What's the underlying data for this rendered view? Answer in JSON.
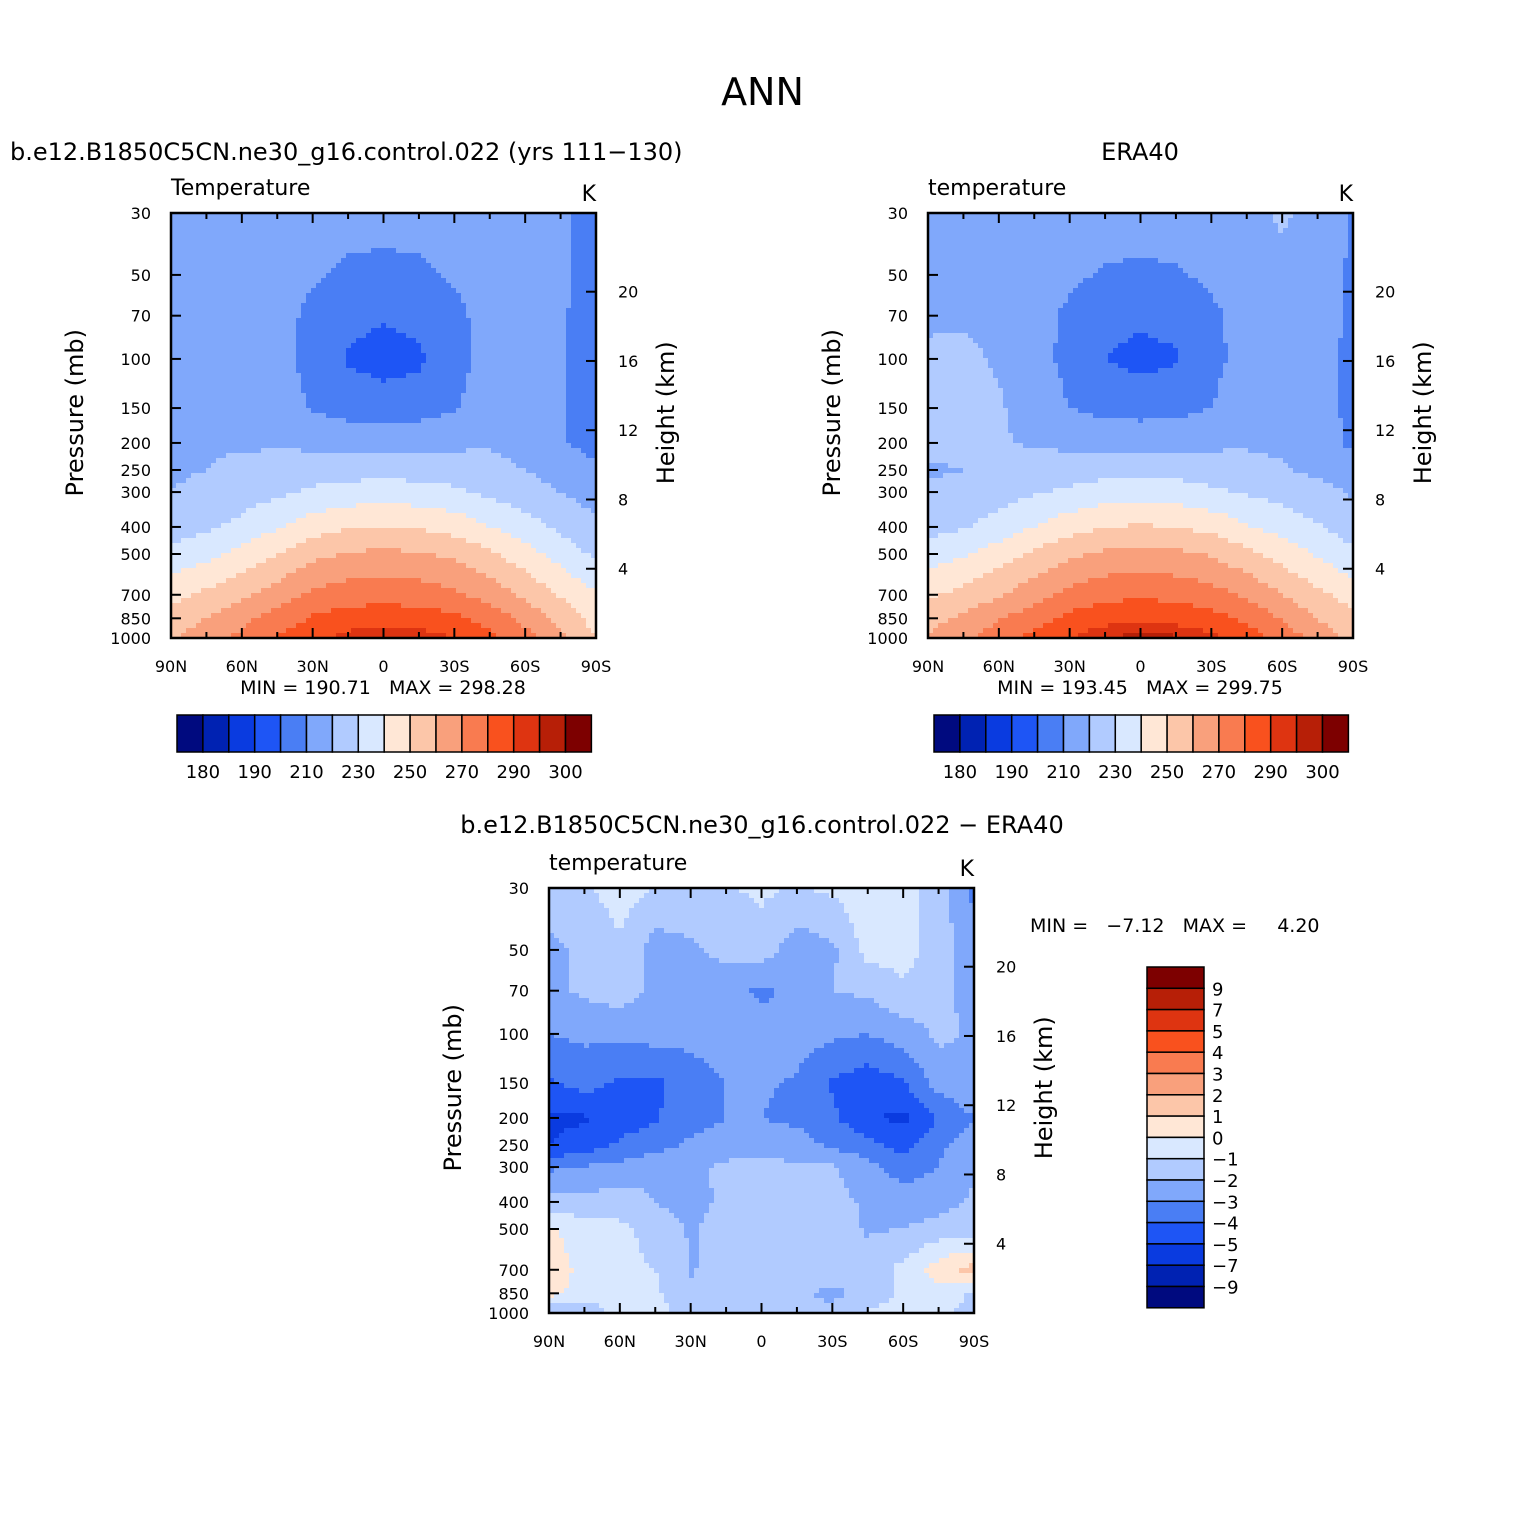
{
  "suptitle": "ANN",
  "panels": [
    {
      "id": "model",
      "title": "b.e12.B1850C5CN.ne30_g16.control.022 (yrs 111-130)",
      "left_label": "Temperature",
      "units": "K",
      "min_max": "MIN = 190.71   MAX = 298.28",
      "stats": {
        "min": 190.71,
        "max": 298.28
      }
    },
    {
      "id": "obs",
      "title": "ERA40",
      "left_label": "temperature",
      "units": "K",
      "min_max": "MIN = 193.45   MAX = 299.75",
      "stats": {
        "min": 193.45,
        "max": 299.75
      }
    },
    {
      "id": "diff",
      "title": "b.e12.B1850C5CN.ne30_g16.control.022 - ERA40",
      "left_label": "temperature",
      "units": "K",
      "min_max": "MIN =   -7.12   MAX =     4.20",
      "stats": {
        "min": -7.12,
        "max": 4.2
      }
    }
  ],
  "chart_data": [
    {
      "type": "heatmap",
      "panel": "model",
      "title": "b.e12.B1850C5CN.ne30_g16.control.022 (yrs 111-130)",
      "left_label": "Temperature",
      "units": "K",
      "xlabel": "",
      "ylabel": "Pressure (mb)",
      "ylabel_right": "Height (km)",
      "x_ticks": [
        "90N",
        "60N",
        "30N",
        "0",
        "30S",
        "60S",
        "90S"
      ],
      "y_ticks": [
        30,
        50,
        70,
        100,
        150,
        200,
        250,
        300,
        400,
        500,
        700,
        850,
        1000
      ],
      "y_right_ticks": [
        4,
        8,
        12,
        16,
        20
      ],
      "ylim": [
        1000,
        30
      ],
      "y_scale": "log",
      "colorbar_levels": [
        180,
        185,
        190,
        200,
        210,
        220,
        230,
        240,
        250,
        260,
        270,
        280,
        290,
        295,
        300
      ],
      "colorbar_labels": [
        "180",
        "190",
        "210",
        "230",
        "250",
        "270",
        "290",
        "300"
      ],
      "colors": [
        "#000a7f",
        "#0022b2",
        "#0a3be0",
        "#1e55f5",
        "#4a7ef4",
        "#80a8fb",
        "#b1cbff",
        "#d9e8ff",
        "#ffe7d6",
        "#fcc6a9",
        "#f9a07c",
        "#f97b50",
        "#f9511e",
        "#de3411",
        "#b71f07",
        "#7d0000"
      ],
      "latitudes": [
        90,
        75,
        60,
        45,
        30,
        15,
        0,
        -15,
        -30,
        -45,
        -60,
        -75,
        -90
      ],
      "pressure_levels": [
        30,
        50,
        70,
        100,
        150,
        200,
        250,
        300,
        400,
        500,
        700,
        850,
        1000
      ],
      "values": [
        [
          219,
          218,
          217,
          216,
          215,
          214,
          214,
          214,
          215,
          215,
          215,
          212,
          206
        ],
        [
          219,
          218,
          216,
          214,
          211,
          208,
          207,
          208,
          211,
          214,
          214,
          212,
          206
        ],
        [
          219,
          218,
          216,
          213,
          208,
          203,
          201,
          203,
          208,
          213,
          214,
          211,
          206
        ],
        [
          219,
          218,
          216,
          213,
          207,
          199,
          196,
          198,
          207,
          213,
          214,
          211,
          205
        ],
        [
          219,
          218,
          217,
          215,
          209,
          206,
          205,
          206,
          209,
          215,
          214,
          211,
          205
        ],
        [
          219,
          219,
          219,
          219,
          218,
          217,
          217,
          217,
          218,
          219,
          216,
          211,
          206
        ],
        [
          219,
          220,
          222,
          223,
          225,
          226,
          226,
          226,
          225,
          223,
          220,
          216,
          212
        ],
        [
          220,
          222,
          225,
          228,
          232,
          234,
          235,
          234,
          232,
          228,
          224,
          220,
          216
        ],
        [
          225,
          228,
          233,
          239,
          245,
          249,
          250,
          249,
          246,
          240,
          234,
          228,
          222
        ],
        [
          233,
          237,
          243,
          250,
          257,
          261,
          262,
          261,
          258,
          252,
          244,
          236,
          228
        ],
        [
          247,
          252,
          258,
          265,
          272,
          275,
          276,
          275,
          272,
          266,
          258,
          249,
          241
        ],
        [
          254,
          260,
          267,
          274,
          281,
          285,
          286,
          285,
          282,
          276,
          267,
          256,
          246
        ],
        [
          259,
          265,
          273,
          281,
          288,
          293,
          295,
          294,
          290,
          283,
          274,
          262,
          250
        ]
      ]
    },
    {
      "type": "heatmap",
      "panel": "obs",
      "title": "ERA40",
      "left_label": "temperature",
      "units": "K",
      "xlabel": "",
      "ylabel": "Pressure (mb)",
      "ylabel_right": "Height (km)",
      "x_ticks": [
        "90N",
        "60N",
        "30N",
        "0",
        "30S",
        "60S",
        "90S"
      ],
      "y_ticks": [
        30,
        50,
        70,
        100,
        150,
        200,
        250,
        300,
        400,
        500,
        700,
        850,
        1000
      ],
      "y_right_ticks": [
        4,
        8,
        12,
        16,
        20
      ],
      "ylim": [
        1000,
        30
      ],
      "y_scale": "log",
      "colorbar_levels": [
        180,
        185,
        190,
        200,
        210,
        220,
        230,
        240,
        250,
        260,
        270,
        280,
        290,
        295,
        300
      ],
      "colorbar_labels": [
        "180",
        "190",
        "210",
        "230",
        "250",
        "270",
        "290",
        "300"
      ],
      "colors": [
        "#000a7f",
        "#0022b2",
        "#0a3be0",
        "#1e55f5",
        "#4a7ef4",
        "#80a8fb",
        "#b1cbff",
        "#d9e8ff",
        "#ffe7d6",
        "#fcc6a9",
        "#f9a07c",
        "#f97b50",
        "#f9511e",
        "#de3411",
        "#b71f07",
        "#7d0000"
      ],
      "latitudes": [
        90,
        75,
        60,
        45,
        30,
        15,
        0,
        -15,
        -30,
        -45,
        -60,
        -75,
        -90
      ],
      "pressure_levels": [
        30,
        50,
        70,
        100,
        150,
        200,
        250,
        300,
        400,
        500,
        700,
        850,
        1000
      ],
      "values": [
        [
          219,
          219,
          218,
          217,
          216,
          215,
          215,
          215,
          216,
          218,
          221,
          218,
          209
        ],
        [
          219,
          219,
          218,
          216,
          212,
          209,
          208,
          209,
          212,
          216,
          218,
          216,
          208
        ],
        [
          219,
          219,
          218,
          214,
          208,
          203,
          202,
          203,
          208,
          214,
          218,
          216,
          207
        ],
        [
          221,
          222,
          219,
          214,
          207,
          200,
          197,
          199,
          207,
          214,
          218,
          215,
          207
        ],
        [
          223,
          224,
          221,
          216,
          210,
          207,
          206,
          207,
          210,
          216,
          218,
          215,
          207
        ],
        [
          222,
          223,
          221,
          219,
          218,
          217,
          217,
          217,
          218,
          219,
          218,
          215,
          208
        ],
        [
          219,
          220,
          222,
          223,
          225,
          226,
          226,
          226,
          225,
          223,
          221,
          218,
          214
        ],
        [
          221,
          223,
          226,
          229,
          232,
          235,
          236,
          235,
          232,
          229,
          226,
          223,
          219
        ],
        [
          226,
          229,
          234,
          240,
          246,
          250,
          251,
          250,
          247,
          241,
          236,
          231,
          225
        ],
        [
          235,
          239,
          245,
          252,
          258,
          262,
          263,
          262,
          259,
          253,
          246,
          239,
          232
        ],
        [
          248,
          253,
          259,
          266,
          273,
          277,
          278,
          277,
          274,
          268,
          260,
          252,
          246
        ],
        [
          256,
          262,
          269,
          276,
          283,
          287,
          288,
          287,
          284,
          278,
          269,
          260,
          252
        ],
        [
          261,
          268,
          276,
          283,
          290,
          295,
          297,
          296,
          292,
          285,
          276,
          266,
          256
        ]
      ]
    },
    {
      "type": "heatmap",
      "panel": "diff",
      "title": "b.e12.B1850C5CN.ne30_g16.control.022 - ERA40",
      "left_label": "temperature",
      "units": "K",
      "xlabel": "",
      "ylabel": "Pressure (mb)",
      "ylabel_right": "Height (km)",
      "x_ticks": [
        "90N",
        "60N",
        "30N",
        "0",
        "30S",
        "60S",
        "90S"
      ],
      "y_ticks": [
        30,
        50,
        70,
        100,
        150,
        200,
        250,
        300,
        400,
        500,
        700,
        850,
        1000
      ],
      "y_right_ticks": [
        4,
        8,
        12,
        16,
        20
      ],
      "ylim": [
        1000,
        30
      ],
      "y_scale": "log",
      "colorbar_levels": [
        -9,
        -7,
        -5,
        -4,
        -3,
        -2,
        -1,
        0,
        1,
        2,
        3,
        4,
        5,
        7,
        9
      ],
      "colorbar_labels": [
        "9",
        "7",
        "5",
        "4",
        "3",
        "2",
        "1",
        "0",
        "-1",
        "-2",
        "-3",
        "-4",
        "-5",
        "-7",
        "-9"
      ],
      "colors": [
        "#000a7f",
        "#0022b2",
        "#0a3be0",
        "#1e55f5",
        "#4a7ef4",
        "#80a8fb",
        "#b1cbff",
        "#d9e8ff",
        "#ffe7d6",
        "#fcc6a9",
        "#f9a07c",
        "#f97b50",
        "#f9511e",
        "#de3411",
        "#b71f07",
        "#7d0000"
      ],
      "latitudes": [
        90,
        75,
        60,
        45,
        30,
        15,
        0,
        -15,
        -30,
        -45,
        -60,
        -75,
        -90
      ],
      "pressure_levels": [
        30,
        50,
        70,
        100,
        150,
        200,
        250,
        300,
        400,
        500,
        700,
        850,
        1000
      ],
      "values": [
        [
          -1.5,
          -1.2,
          -0.5,
          -1.0,
          -1.2,
          -1.1,
          -0.8,
          -1.1,
          -0.8,
          -0.4,
          -0.6,
          -1.5,
          -3.2
        ],
        [
          -2.2,
          -1.8,
          -1.2,
          -2.5,
          -2.2,
          -1.7,
          -1.5,
          -2.6,
          -2.2,
          -0.6,
          -0.6,
          -1.4,
          -2.8
        ],
        [
          -2.3,
          -1.8,
          -1.5,
          -2.3,
          -2.4,
          -2.6,
          -3.2,
          -2.7,
          -2.0,
          -1.8,
          -1.2,
          -1.8,
          -2.3
        ],
        [
          -3.0,
          -2.8,
          -2.8,
          -2.6,
          -2.7,
          -2.5,
          -2.6,
          -2.6,
          -2.8,
          -3.0,
          -2.5,
          -1.8,
          -2.1
        ],
        [
          -4.1,
          -3.6,
          -4.2,
          -4.2,
          -3.5,
          -3.0,
          -2.9,
          -3.1,
          -4.1,
          -4.6,
          -4.1,
          -2.6,
          -2.1
        ],
        [
          -5.2,
          -5.1,
          -4.6,
          -4.1,
          -3.4,
          -3.0,
          -3.0,
          -3.2,
          -3.8,
          -4.9,
          -5.2,
          -4.0,
          -3.0
        ],
        [
          -5.0,
          -4.6,
          -3.8,
          -3.4,
          -2.8,
          -2.5,
          -2.5,
          -2.6,
          -3.2,
          -3.6,
          -4.5,
          -3.2,
          -2.4
        ],
        [
          -3.2,
          -2.9,
          -2.7,
          -2.3,
          -2.2,
          -1.8,
          -1.7,
          -1.8,
          -1.9,
          -2.7,
          -3.4,
          -3.0,
          -2.2
        ],
        [
          -1.6,
          -1.7,
          -1.4,
          -2.0,
          -2.5,
          -1.7,
          -1.6,
          -1.5,
          -1.6,
          -2.2,
          -2.6,
          -2.4,
          -1.8
        ],
        [
          0.2,
          -0.6,
          -0.8,
          -1.3,
          -2.1,
          -1.5,
          -1.5,
          -1.4,
          -1.5,
          -2.1,
          -2.0,
          -1.6,
          -1.6
        ],
        [
          0.6,
          -0.3,
          -0.8,
          -1.0,
          -2.1,
          -1.5,
          -1.5,
          -1.4,
          -1.5,
          -1.6,
          -0.7,
          0.5,
          1.5
        ],
        [
          0.4,
          -0.5,
          -0.6,
          -0.8,
          -1.8,
          -2.0,
          -1.8,
          -1.9,
          -2.2,
          -1.8,
          -0.8,
          -0.4,
          -1.2
        ],
        [
          -2.0,
          -1.8,
          -0.4,
          -0.7,
          -1.3,
          -1.5,
          -1.6,
          -1.7,
          -1.8,
          -0.9,
          -0.5,
          -0.8,
          -1.3
        ]
      ]
    }
  ]
}
